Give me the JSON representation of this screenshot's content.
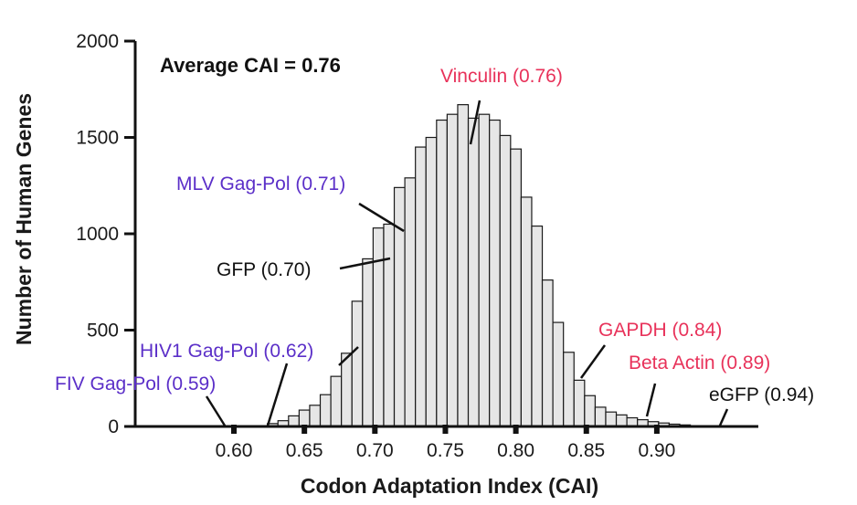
{
  "chart_data": {
    "type": "bar",
    "xlabel": "Codon Adaptation Index (CAI)",
    "ylabel": "Number of Human Genes",
    "ylim": [
      0,
      2000
    ],
    "yticks": [
      "0",
      "500",
      "1000",
      "1500",
      "2000"
    ],
    "xlim": [
      0.53,
      0.972
    ],
    "xticks": [
      {
        "value": 0.6,
        "label": "0.60"
      },
      {
        "value": 0.65,
        "label": "0.65"
      },
      {
        "value": 0.7,
        "label": "0.70"
      },
      {
        "value": 0.75,
        "label": "0.75"
      },
      {
        "value": 0.8,
        "label": "0.80"
      },
      {
        "value": 0.85,
        "label": "0.85"
      },
      {
        "value": 0.9,
        "label": "0.90"
      }
    ],
    "bin_width": 0.0075,
    "bins": [
      {
        "x": 0.6275,
        "y": 15
      },
      {
        "x": 0.635,
        "y": 30
      },
      {
        "x": 0.6425,
        "y": 55
      },
      {
        "x": 0.65,
        "y": 85
      },
      {
        "x": 0.6575,
        "y": 110
      },
      {
        "x": 0.665,
        "y": 165
      },
      {
        "x": 0.6725,
        "y": 260
      },
      {
        "x": 0.68,
        "y": 380
      },
      {
        "x": 0.6875,
        "y": 650
      },
      {
        "x": 0.695,
        "y": 870
      },
      {
        "x": 0.7025,
        "y": 1030
      },
      {
        "x": 0.71,
        "y": 1050
      },
      {
        "x": 0.7175,
        "y": 1240
      },
      {
        "x": 0.725,
        "y": 1290
      },
      {
        "x": 0.7325,
        "y": 1450
      },
      {
        "x": 0.74,
        "y": 1500
      },
      {
        "x": 0.7475,
        "y": 1590
      },
      {
        "x": 0.755,
        "y": 1620
      },
      {
        "x": 0.7625,
        "y": 1670
      },
      {
        "x": 0.77,
        "y": 1600
      },
      {
        "x": 0.7775,
        "y": 1620
      },
      {
        "x": 0.785,
        "y": 1590
      },
      {
        "x": 0.7925,
        "y": 1510
      },
      {
        "x": 0.8,
        "y": 1440
      },
      {
        "x": 0.8075,
        "y": 1190
      },
      {
        "x": 0.815,
        "y": 1040
      },
      {
        "x": 0.8225,
        "y": 760
      },
      {
        "x": 0.83,
        "y": 540
      },
      {
        "x": 0.8375,
        "y": 385
      },
      {
        "x": 0.845,
        "y": 240
      },
      {
        "x": 0.8525,
        "y": 160
      },
      {
        "x": 0.86,
        "y": 100
      },
      {
        "x": 0.8675,
        "y": 75
      },
      {
        "x": 0.875,
        "y": 60
      },
      {
        "x": 0.8825,
        "y": 45
      },
      {
        "x": 0.89,
        "y": 35
      },
      {
        "x": 0.8975,
        "y": 25
      },
      {
        "x": 0.905,
        "y": 18
      },
      {
        "x": 0.9125,
        "y": 12
      },
      {
        "x": 0.92,
        "y": 8
      }
    ],
    "annotations": [
      {
        "name": "average",
        "text": "Average CAI = 0.76",
        "color": "#111111"
      },
      {
        "name": "vinculin",
        "text": "Vinculin (0.76)",
        "color": "#e8325a"
      },
      {
        "name": "mlv",
        "text": "MLV Gag-Pol (0.71)",
        "color": "#5b2fc8"
      },
      {
        "name": "gfp",
        "text": "GFP (0.70)",
        "color": "#111111"
      },
      {
        "name": "hiv1",
        "text": "HIV1 Gag-Pol (0.62)",
        "color": "#5b2fc8"
      },
      {
        "name": "fiv",
        "text": "FIV Gag-Pol (0.59)",
        "color": "#5b2fc8"
      },
      {
        "name": "gapdh",
        "text": "GAPDH (0.84)",
        "color": "#e8325a"
      },
      {
        "name": "beta-actin",
        "text": "Beta Actin (0.89)",
        "color": "#e8325a"
      },
      {
        "name": "egfp",
        "text": "eGFP (0.94)",
        "color": "#111111"
      }
    ],
    "colors": {
      "bar_fill": "#e6e6e6",
      "bar_stroke": "#1a1a1a",
      "axis": "#111111"
    }
  }
}
